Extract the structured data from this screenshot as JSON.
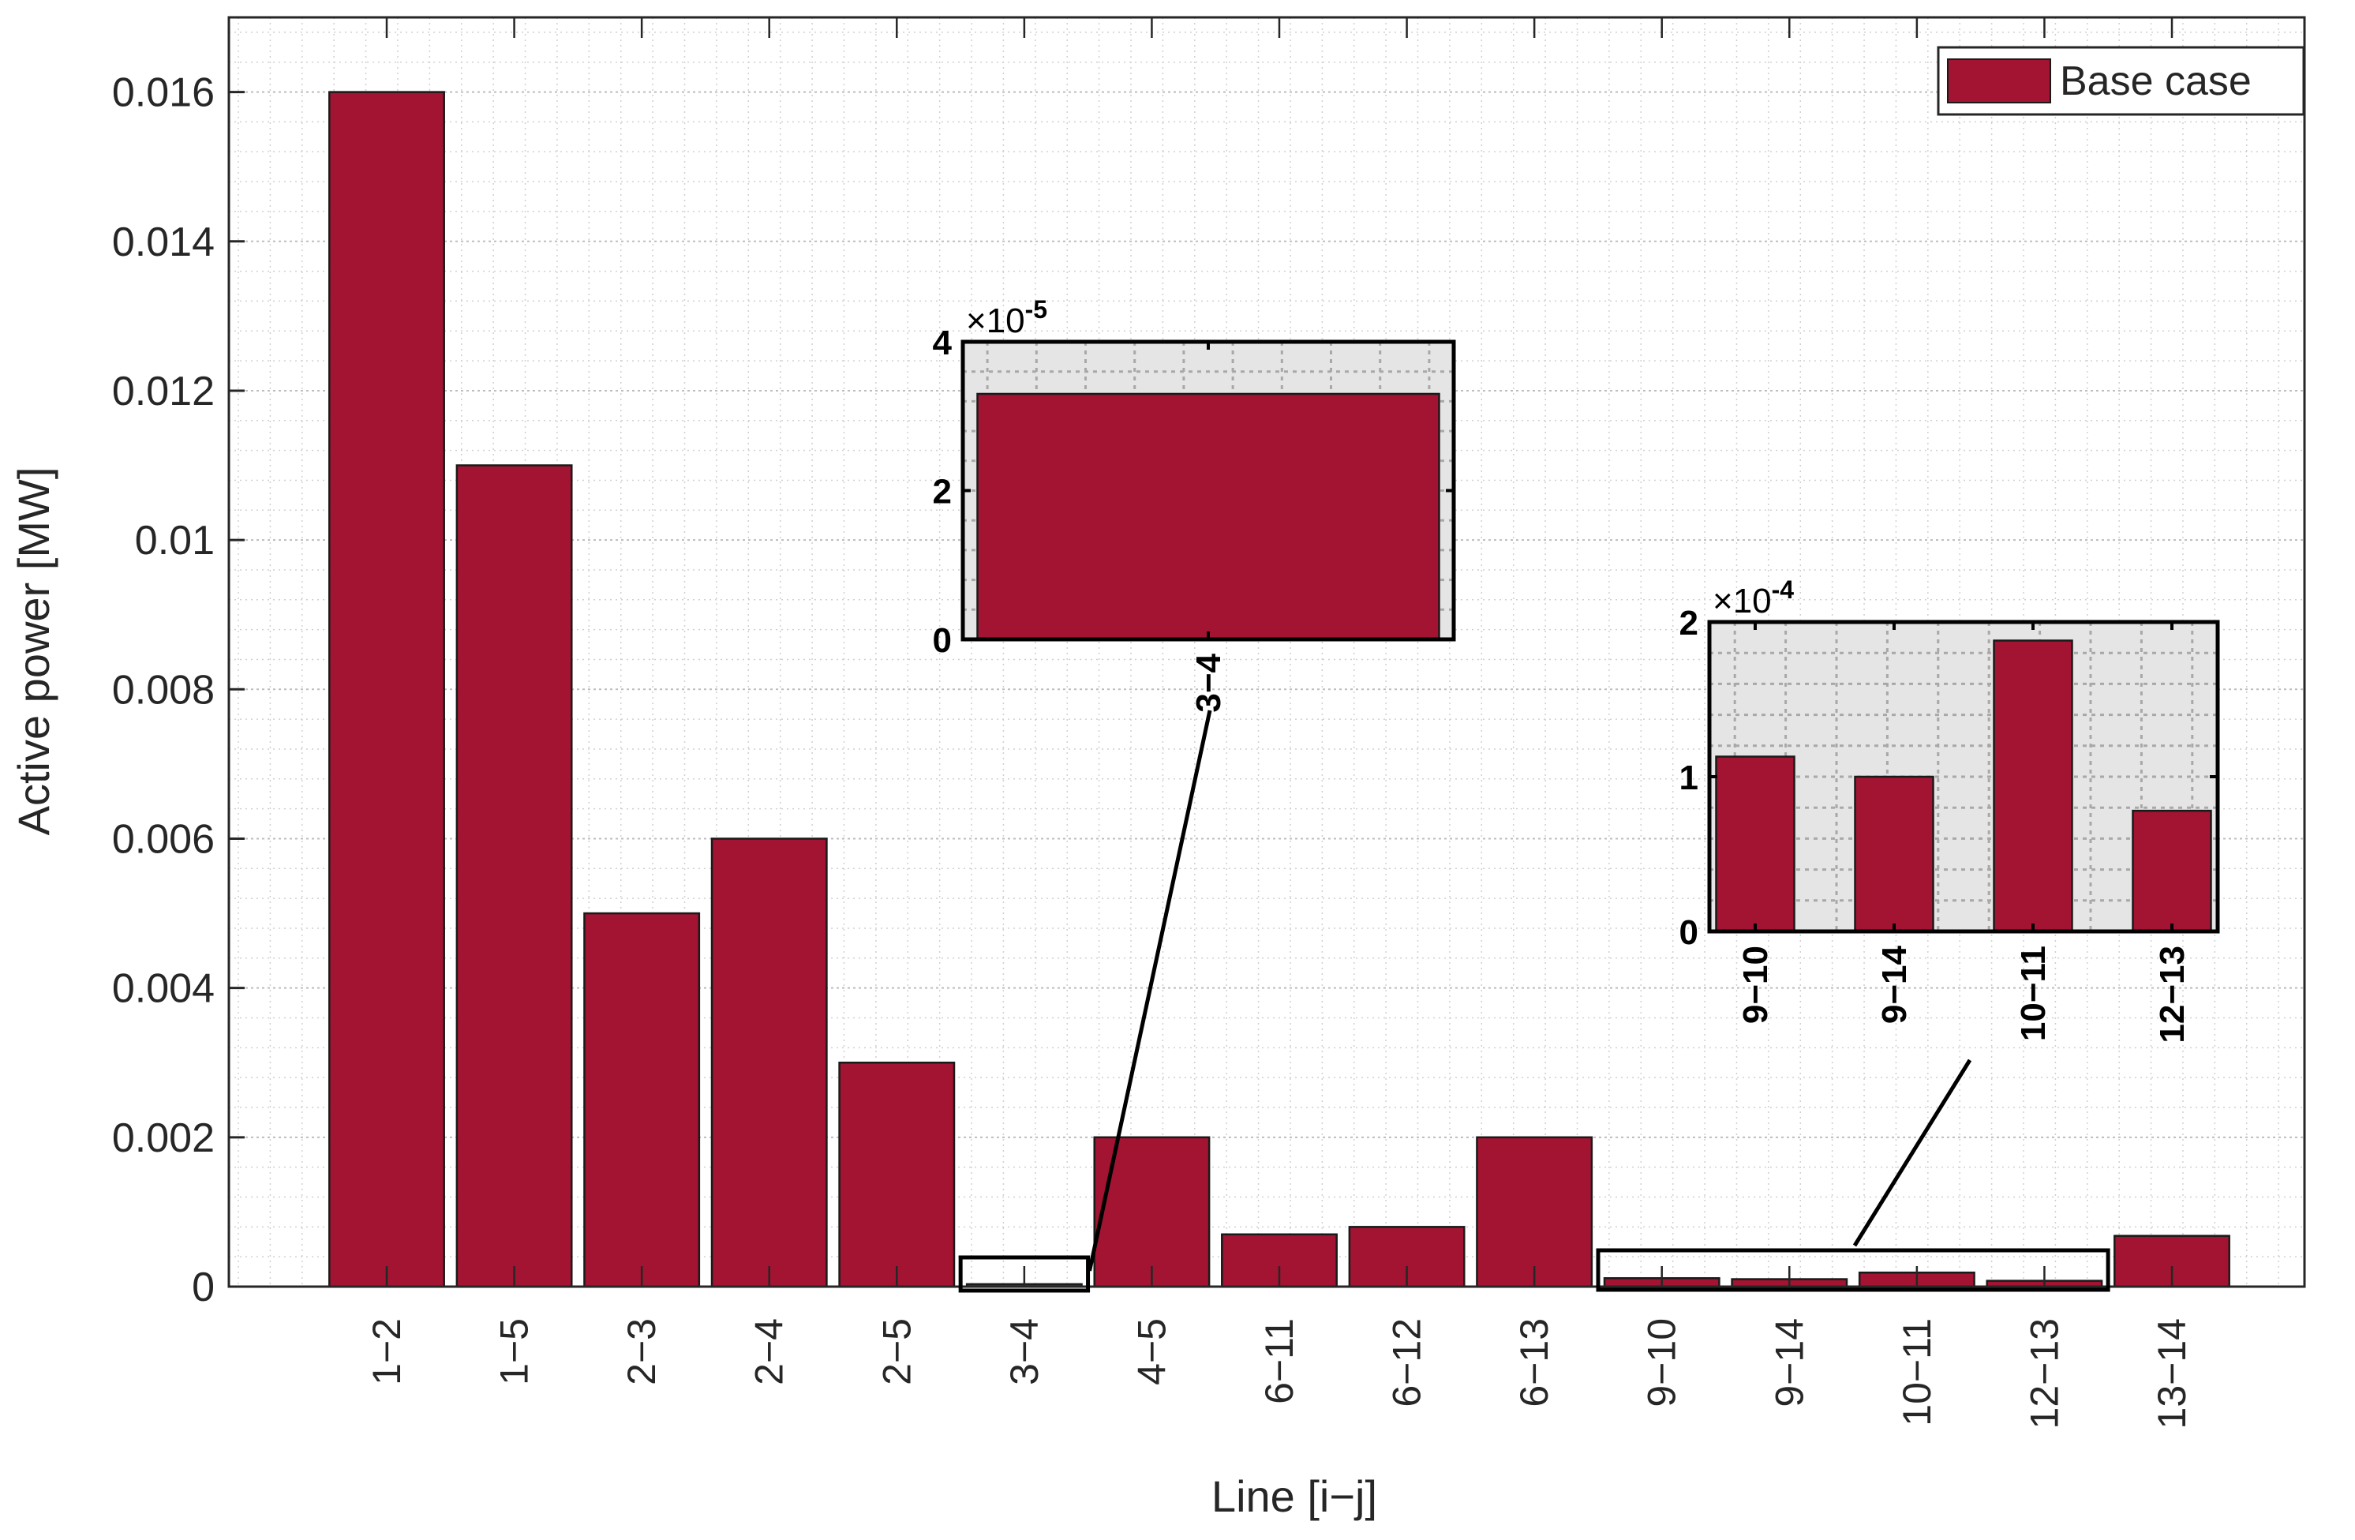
{
  "chart_data": {
    "type": "bar",
    "title": "",
    "xlabel": "Line [i−j]",
    "ylabel": "Active power [MW]",
    "ylim": [
      0,
      0.017
    ],
    "yticks": [
      0,
      0.002,
      0.004,
      0.006,
      0.008,
      0.01,
      0.012,
      0.014,
      0.016
    ],
    "ytick_labels": [
      "0",
      "0.002",
      "0.004",
      "0.006",
      "0.008",
      "0.01",
      "0.012",
      "0.014",
      "0.016"
    ],
    "grid": true,
    "minor_grid": true,
    "legend_position": "top-right",
    "categories": [
      "1−2",
      "1−5",
      "2−3",
      "2−4",
      "2−5",
      "3−4",
      "4−5",
      "6−11",
      "6−12",
      "6−13",
      "9−10",
      "9−14",
      "10−11",
      "12−13",
      "13−14"
    ],
    "series": [
      {
        "name": "Base case",
        "color": "#A21431",
        "values": [
          0.016,
          0.011,
          0.005,
          0.006,
          0.003,
          3.3e-05,
          0.002,
          0.0007,
          0.0008,
          0.002,
          0.000113,
          0.0001,
          0.000188,
          7.8e-05,
          0.00068
        ]
      }
    ],
    "insets": [
      {
        "categories": [
          "3−4"
        ],
        "values": [
          3.3
        ],
        "multiplier_label": "×10",
        "exponent": "-5",
        "ylim": [
          0,
          4
        ],
        "yticks": [
          0,
          2,
          4
        ],
        "ytick_labels": [
          "0",
          "2",
          "4"
        ]
      },
      {
        "categories": [
          "9−10",
          "9−14",
          "10−11",
          "12−13"
        ],
        "values": [
          1.13,
          1.0,
          1.88,
          0.78
        ],
        "multiplier_label": "×10",
        "exponent": "-4",
        "ylim": [
          0,
          2
        ],
        "yticks": [
          0,
          1,
          2
        ],
        "ytick_labels": [
          "0",
          "1",
          "2"
        ]
      }
    ]
  },
  "legend": {
    "label": "Base case",
    "color": "#A21431"
  },
  "axes": {
    "xlabel": "Line [i−j]",
    "ylabel": "Active power [MW]"
  },
  "colors": {
    "bar": "#A21431",
    "inset_bg": "#E5E5E5",
    "axis": "#262626"
  }
}
